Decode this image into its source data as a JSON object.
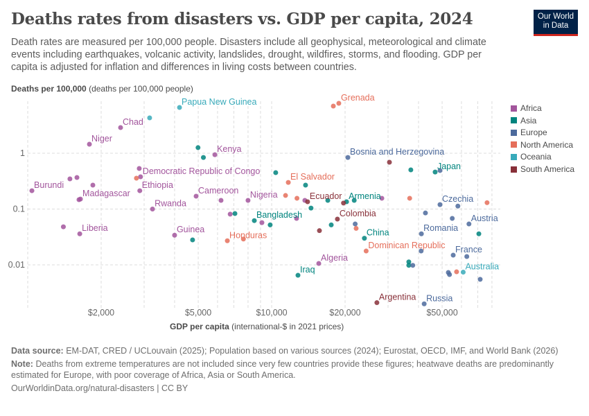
{
  "header": {
    "title": "Deaths rates from disasters vs. GDP per capita, 2024",
    "subtitle": "Death rates are measured per 100,000 people. Disasters include all geophysical, meteorological and climate events including earthquakes, volcanic activity, landslides, drought, wildfires, storms, and flooding. GDP per capita is adjusted for inflation and differences in living costs between countries.",
    "logo": [
      "Our World",
      "in Data"
    ]
  },
  "footer": {
    "source_label": "Data source:",
    "source": "EM-DAT, CRED / UCLouvain (2025); Population based on various sources (2024); Eurostat, OECD, IMF, and World Bank (2026)",
    "note_label": "Note:",
    "note": "Deaths from extreme temperatures are not included since very few countries provide these figures; heatwave deaths are predominantly estimated for Europe, with poor coverage of Africa, Asia or South America.",
    "credit": "OurWorldinData.org/natural-disasters | CC BY"
  },
  "chart_data": {
    "type": "scatter",
    "title": "Deaths rates from disasters vs. GDP per capita, 2024",
    "xlabel_bold": "GDP per capita",
    "xlabel_rest": "(international-$ in 2021 prices)",
    "ylabel_bold": "Deaths per 100,000",
    "ylabel_rest": "(deaths per 100,000 people)",
    "x_scale": "log",
    "y_scale": "log",
    "xlim": [
      1000,
      85000
    ],
    "ylim": [
      0.0018,
      8
    ],
    "x_ticks": [
      {
        "value": 2000,
        "label": "$2,000"
      },
      {
        "value": 5000,
        "label": "$5,000"
      },
      {
        "value": 10000,
        "label": "$10,000"
      },
      {
        "value": 20000,
        "label": "$20,000"
      },
      {
        "value": 50000,
        "label": "$50,000"
      }
    ],
    "y_ticks": [
      {
        "value": 1,
        "label": "1"
      },
      {
        "value": 0.1,
        "label": "0.1"
      },
      {
        "value": 0.01,
        "label": "0.01"
      }
    ],
    "grid": true,
    "legend_position": "right",
    "legend": [
      {
        "name": "Africa",
        "color": "#a2559c"
      },
      {
        "name": "Asia",
        "color": "#00847e"
      },
      {
        "name": "Europe",
        "color": "#4c6a9c"
      },
      {
        "name": "North America",
        "color": "#e56e5a"
      },
      {
        "name": "Oceania",
        "color": "#38aaba"
      },
      {
        "name": "South America",
        "color": "#883039"
      }
    ],
    "points": [
      {
        "label": "Burundi",
        "region": "Africa",
        "x": 1040,
        "y": 0.213
      },
      {
        "label": "",
        "region": "Africa",
        "x": 1400,
        "y": 0.048
      },
      {
        "label": "Liberia",
        "region": "Africa",
        "x": 1634,
        "y": 0.036
      },
      {
        "label": "",
        "region": "Africa",
        "x": 1489,
        "y": 0.347
      },
      {
        "label": "",
        "region": "Africa",
        "x": 1591,
        "y": 0.367
      },
      {
        "label": "",
        "region": "Africa",
        "x": 1622,
        "y": 0.147
      },
      {
        "label": "Madagascar",
        "region": "Africa",
        "x": 1644,
        "y": 0.151
      },
      {
        "label": "",
        "region": "Africa",
        "x": 1849,
        "y": 0.268
      },
      {
        "label": "Niger",
        "region": "Africa",
        "x": 1790,
        "y": 1.45
      },
      {
        "label": "Chad",
        "region": "Africa",
        "x": 2402,
        "y": 2.88
      },
      {
        "label": "",
        "region": "Africa",
        "x": 2865,
        "y": 0.533
      },
      {
        "label": "Democratic Republic of Congo",
        "region": "Africa",
        "x": 2900,
        "y": 0.378
      },
      {
        "label": "Ethiopia",
        "region": "Africa",
        "x": 2880,
        "y": 0.213
      },
      {
        "label": "Rwanda",
        "region": "Africa",
        "x": 3247,
        "y": 0.1
      },
      {
        "label": "Guinea",
        "region": "Africa",
        "x": 4000,
        "y": 0.034
      },
      {
        "label": "Cameroon",
        "region": "Africa",
        "x": 4900,
        "y": 0.17
      },
      {
        "label": "",
        "region": "Africa",
        "x": 6200,
        "y": 0.143
      },
      {
        "label": "",
        "region": "Africa",
        "x": 6760,
        "y": 0.081
      },
      {
        "label": "Kenya",
        "region": "Africa",
        "x": 5850,
        "y": 0.94
      },
      {
        "label": "Nigeria",
        "region": "Africa",
        "x": 8000,
        "y": 0.143
      },
      {
        "label": "",
        "region": "Africa",
        "x": 9120,
        "y": 0.057
      },
      {
        "label": "",
        "region": "Africa",
        "x": 12650,
        "y": 0.068
      },
      {
        "label": "",
        "region": "Africa",
        "x": 13680,
        "y": 0.143
      },
      {
        "label": "Algeria",
        "region": "Africa",
        "x": 15600,
        "y": 0.0106
      },
      {
        "label": "",
        "region": "Africa",
        "x": 28300,
        "y": 0.156
      },
      {
        "label": "",
        "region": "Asia",
        "x": 4740,
        "y": 0.028
      },
      {
        "label": "",
        "region": "Asia",
        "x": 4990,
        "y": 1.26
      },
      {
        "label": "",
        "region": "Asia",
        "x": 5250,
        "y": 0.84
      },
      {
        "label": "",
        "region": "Asia",
        "x": 7070,
        "y": 0.083
      },
      {
        "label": "Bangladesh",
        "region": "Asia",
        "x": 8490,
        "y": 0.062
      },
      {
        "label": "",
        "region": "Asia",
        "x": 9860,
        "y": 0.052
      },
      {
        "label": "",
        "region": "Asia",
        "x": 10390,
        "y": 0.449
      },
      {
        "label": "",
        "region": "Asia",
        "x": 13770,
        "y": 0.268
      },
      {
        "label": "",
        "region": "Asia",
        "x": 14500,
        "y": 0.104
      },
      {
        "label": "",
        "region": "Asia",
        "x": 16990,
        "y": 0.143
      },
      {
        "label": "",
        "region": "Asia",
        "x": 17550,
        "y": 0.052
      },
      {
        "label": "Armenia",
        "region": "Asia",
        "x": 20280,
        "y": 0.135
      },
      {
        "label": "",
        "region": "Asia",
        "x": 21800,
        "y": 0.143
      },
      {
        "label": "China",
        "region": "Asia",
        "x": 24000,
        "y": 0.03
      },
      {
        "label": "",
        "region": "Asia",
        "x": 37200,
        "y": 0.503
      },
      {
        "label": "Japan",
        "region": "Asia",
        "x": 46800,
        "y": 0.46
      },
      {
        "label": "",
        "region": "Asia",
        "x": 36500,
        "y": 0.0113
      },
      {
        "label": "",
        "region": "Asia",
        "x": 36500,
        "y": 0.0098
      },
      {
        "label": "",
        "region": "Asia",
        "x": 70700,
        "y": 0.036
      },
      {
        "label": "Iraq",
        "region": "Asia",
        "x": 12820,
        "y": 0.0065
      },
      {
        "label": "Bosnia and Herzegovina",
        "region": "Europe",
        "x": 20530,
        "y": 0.84
      },
      {
        "label": "",
        "region": "Europe",
        "x": 49000,
        "y": 0.49
      },
      {
        "label": "Czechia",
        "region": "Europe",
        "x": 49000,
        "y": 0.12
      },
      {
        "label": "",
        "region": "Europe",
        "x": 42700,
        "y": 0.085
      },
      {
        "label": "",
        "region": "Europe",
        "x": 55000,
        "y": 0.068
      },
      {
        "label": "",
        "region": "Europe",
        "x": 58000,
        "y": 0.113
      },
      {
        "label": "",
        "region": "Europe",
        "x": 22000,
        "y": 0.054
      },
      {
        "label": "Austria",
        "region": "Europe",
        "x": 64400,
        "y": 0.054
      },
      {
        "label": "Romania",
        "region": "Europe",
        "x": 41100,
        "y": 0.036
      },
      {
        "label": "",
        "region": "Europe",
        "x": 41000,
        "y": 0.0177
      },
      {
        "label": "France",
        "region": "Europe",
        "x": 55500,
        "y": 0.0149
      },
      {
        "label": "",
        "region": "Europe",
        "x": 63100,
        "y": 0.0141
      },
      {
        "label": "",
        "region": "Europe",
        "x": 37900,
        "y": 0.0098
      },
      {
        "label": "",
        "region": "Europe",
        "x": 53000,
        "y": 0.0073
      },
      {
        "label": "",
        "region": "Europe",
        "x": 53600,
        "y": 0.0067
      },
      {
        "label": "",
        "region": "Europe",
        "x": 71600,
        "y": 0.0055
      },
      {
        "label": "Russia",
        "region": "Europe",
        "x": 42200,
        "y": 0.002
      },
      {
        "label": "Grenada",
        "region": "North America",
        "x": 18850,
        "y": 7.84
      },
      {
        "label": "",
        "region": "North America",
        "x": 17900,
        "y": 7.0
      },
      {
        "label": "El Salvador",
        "region": "North America",
        "x": 11700,
        "y": 0.3
      },
      {
        "label": "",
        "region": "North America",
        "x": 11400,
        "y": 0.175
      },
      {
        "label": "",
        "region": "North America",
        "x": 12700,
        "y": 0.156
      },
      {
        "label": "",
        "region": "North America",
        "x": 2790,
        "y": 0.357
      },
      {
        "label": "Honduras",
        "region": "North America",
        "x": 6580,
        "y": 0.027
      },
      {
        "label": "",
        "region": "North America",
        "x": 7660,
        "y": 0.029
      },
      {
        "label": "",
        "region": "North America",
        "x": 22200,
        "y": 0.045
      },
      {
        "label": "Dominican Republic",
        "region": "North America",
        "x": 24400,
        "y": 0.0177
      },
      {
        "label": "",
        "region": "North America",
        "x": 36800,
        "y": 0.156
      },
      {
        "label": "",
        "region": "North America",
        "x": 76400,
        "y": 0.13
      },
      {
        "label": "",
        "region": "North America",
        "x": 57300,
        "y": 0.0075
      },
      {
        "label": "Papua New Guinea",
        "region": "Oceania",
        "x": 4190,
        "y": 6.6
      },
      {
        "label": "",
        "region": "Oceania",
        "x": 3160,
        "y": 4.3
      },
      {
        "label": "Australia",
        "region": "Oceania",
        "x": 61000,
        "y": 0.0074
      },
      {
        "label": "Ecuador",
        "region": "South America",
        "x": 14040,
        "y": 0.135
      },
      {
        "label": "",
        "region": "South America",
        "x": 15700,
        "y": 0.041
      },
      {
        "label": "Colombia",
        "region": "South America",
        "x": 18600,
        "y": 0.066
      },
      {
        "label": "",
        "region": "South America",
        "x": 19700,
        "y": 0.128
      },
      {
        "label": "",
        "region": "South America",
        "x": 30400,
        "y": 0.69
      },
      {
        "label": "Argentina",
        "region": "South America",
        "x": 27000,
        "y": 0.0021
      }
    ]
  }
}
